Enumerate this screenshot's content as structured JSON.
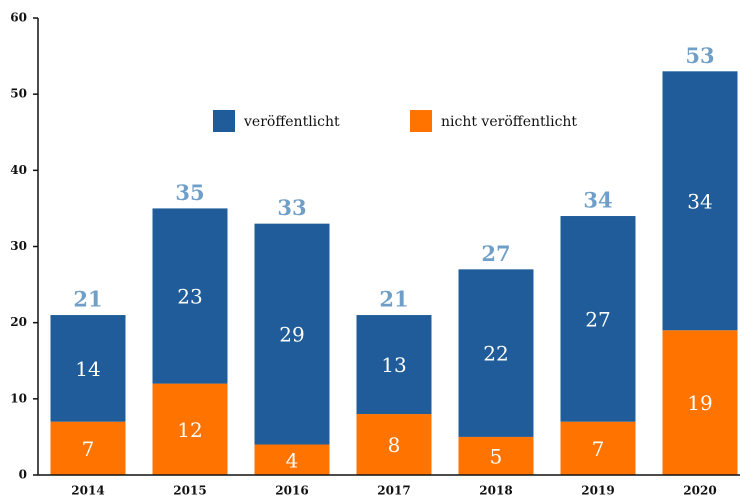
{
  "chart_data": {
    "type": "stacked_bar",
    "categories": [
      "2014",
      "2015",
      "2016",
      "2017",
      "2018",
      "2019",
      "2020"
    ],
    "series": [
      {
        "name": "nicht veröffentlicht",
        "color": "#ff7300",
        "values": [
          7,
          12,
          4,
          8,
          5,
          7,
          19
        ]
      },
      {
        "name": "veröffentlicht",
        "color": "#1f5c99",
        "values": [
          14,
          23,
          29,
          13,
          22,
          27,
          34
        ]
      }
    ],
    "totals": [
      21,
      35,
      33,
      21,
      27,
      34,
      53
    ],
    "legend_order": [
      1,
      0
    ],
    "ylim": [
      0,
      60
    ],
    "yticks": [
      0,
      10,
      20,
      30,
      40,
      50,
      60
    ]
  }
}
